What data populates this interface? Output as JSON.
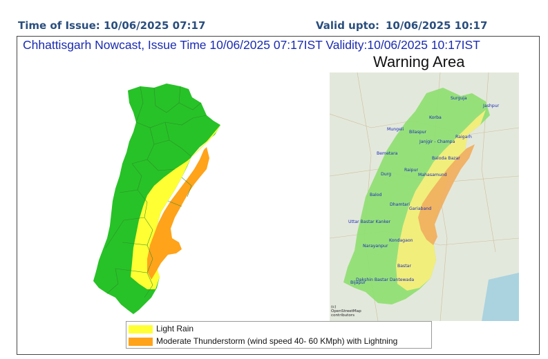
{
  "header": {
    "issue_text": "Time of Issue: 10/06/2025 07:17",
    "valid_label": "Valid upto:",
    "valid_value": "10/06/2025 10:17"
  },
  "bulletin": {
    "title": "Chhattisgarh Nowcast, Issue Time 10/06/2025 07:17IST  Validity:10/06/2025 10:17IST",
    "warning_area_title": "Warning Area"
  },
  "colors": {
    "no_warning": "#27c227",
    "light_rain": "#ffff33",
    "moderate_thunderstorm": "#ffa31a"
  },
  "reference_map": {
    "districts": [
      "Surguja",
      "Jashpur",
      "Korba",
      "Mungeli",
      "Bilaspur",
      "Raigarh",
      "Janjgir - Champa",
      "Bemetara",
      "Baloda Bazar",
      "Raipur",
      "Durg",
      "Mahasamund",
      "Balod",
      "Dhamtari",
      "Gariaband",
      "Uttar Bastar Kanker",
      "Kondagaon",
      "Narayanpur",
      "Bastar",
      "Dakshin Bastar Dantewada",
      "Bijapur"
    ],
    "attribution_line1": "(c)",
    "attribution_line2": "OpenStreetMap",
    "attribution_line3": "contributors"
  },
  "legend": {
    "items": [
      {
        "label": "Light Rain",
        "color": "#ffff33"
      },
      {
        "label": "Moderate Thunderstorm (wind speed 40- 60 KMph) with Lightning",
        "color": "#ffa31a"
      }
    ]
  }
}
